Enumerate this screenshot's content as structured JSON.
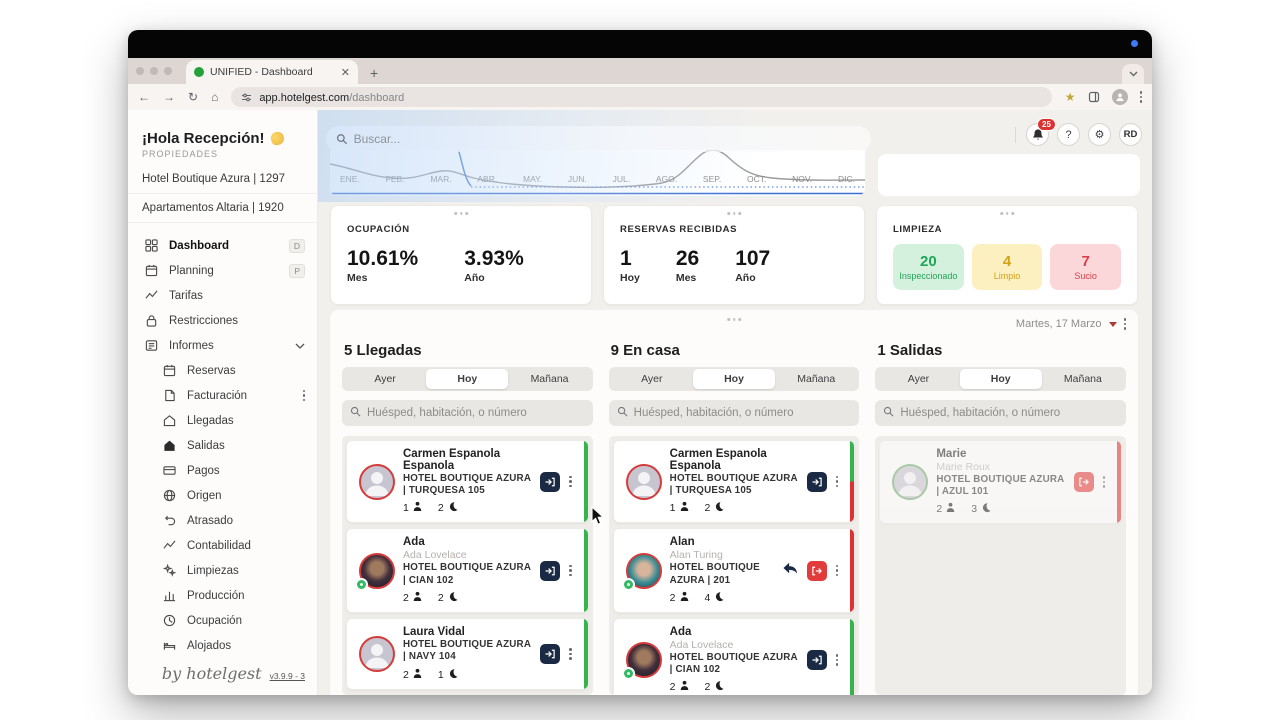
{
  "browser": {
    "tab_title": "UNIFIED - Dashboard",
    "close_glyph": "✕",
    "new_tab_glyph": "+",
    "back_glyph": "←",
    "forward_glyph": "→",
    "reload_glyph": "↻",
    "home_glyph": "⌂",
    "url_host": "app.hotelgest.com",
    "url_path": "/dashboard",
    "star_glyph": "★"
  },
  "sidebar": {
    "greeting": "¡Hola Recepción!",
    "section_label": "PROPIEDADES",
    "properties": [
      "Hotel Boutique Azura | 1297",
      "Apartamentos Altaria | 1920"
    ],
    "menu": [
      {
        "label": "Dashboard",
        "icon": "grid-icon",
        "badge": "D",
        "active": true
      },
      {
        "label": "Planning",
        "icon": "calendar-icon",
        "badge": "P"
      },
      {
        "label": "Tarifas",
        "icon": "chart-line-icon"
      },
      {
        "label": "Restricciones",
        "icon": "lock-icon"
      },
      {
        "label": "Informes",
        "icon": "news-icon",
        "chevron": true
      },
      {
        "label": "Reservas",
        "icon": "calendar-icon",
        "sub": true
      },
      {
        "label": "Facturación",
        "icon": "document-icon",
        "sub": true,
        "kebab": true
      },
      {
        "label": "Llegadas",
        "icon": "home-icon",
        "sub": true
      },
      {
        "label": "Salidas",
        "icon": "home-filled-icon",
        "sub": true
      },
      {
        "label": "Pagos",
        "icon": "credit-card-icon",
        "sub": true
      },
      {
        "label": "Origen",
        "icon": "globe-icon",
        "sub": true
      },
      {
        "label": "Atrasado",
        "icon": "undo-icon",
        "sub": true
      },
      {
        "label": "Contabilidad",
        "icon": "chart-line-icon",
        "sub": true
      },
      {
        "label": "Limpiezas",
        "icon": "sparkles-icon",
        "sub": true
      },
      {
        "label": "Producción",
        "icon": "bar-chart-icon",
        "sub": true
      },
      {
        "label": "Ocupación",
        "icon": "clock-icon",
        "sub": true
      },
      {
        "label": "Alojados",
        "icon": "bed-icon",
        "sub": true
      }
    ],
    "footer_brand": "by hotelgest",
    "version": "v3.9.9 - 3"
  },
  "topbar": {
    "search_placeholder": "Buscar...",
    "notification_count": "25",
    "help_label": "?",
    "gear_glyph": "⚙",
    "avatar_initials": "RD"
  },
  "chart": {
    "months": [
      "ENE.",
      "FEB.",
      "MAR.",
      "ABR.",
      "MAY.",
      "JUN.",
      "JUL.",
      "AGO.",
      "SEP.",
      "OCT.",
      "NOV.",
      "DIC."
    ]
  },
  "stats": {
    "ocupacion": {
      "title": "OCUPACIÓN",
      "values": [
        {
          "value": "10.61%",
          "label": "Mes"
        },
        {
          "value": "3.93%",
          "label": "Año"
        }
      ]
    },
    "reservas": {
      "title": "RESERVAS RECIBIDAS",
      "values": [
        {
          "value": "1",
          "label": "Hoy"
        },
        {
          "value": "26",
          "label": "Mes"
        },
        {
          "value": "107",
          "label": "Año"
        }
      ]
    },
    "limpieza": {
      "title": "LIMPIEZA",
      "tiles": [
        {
          "value": "20",
          "label": "Inspeccionado",
          "color": "green"
        },
        {
          "value": "4",
          "label": "Limpio",
          "color": "yellow"
        },
        {
          "value": "7",
          "label": "Sucio",
          "color": "red"
        }
      ]
    }
  },
  "board": {
    "date_label": "Martes, 17 Marzo",
    "tabs": [
      "Ayer",
      "Hoy",
      "Mañana"
    ],
    "active_tab": "Hoy",
    "search_placeholder": "Huésped, habitación, o número",
    "columns": [
      {
        "title": "5 Llegadas",
        "guests": [
          {
            "name": "Carmen Espanola Espanola",
            "subtitle": "",
            "hotel": "HOTEL BOUTIQUE AZURA | TURQUESA 105",
            "persons": "1",
            "nights": "2",
            "avatar": {
              "type": "placeholder",
              "ring": "red",
              "badge": false
            },
            "actions": [
              "checkin"
            ],
            "edge": "green",
            "faded": false
          },
          {
            "name": "Ada",
            "subtitle": "Ada Lovelace",
            "hotel": "HOTEL BOUTIQUE AZURA | CIAN 102",
            "persons": "2",
            "nights": "2",
            "avatar": {
              "type": "photo-ada",
              "ring": "red",
              "badge": true
            },
            "actions": [
              "checkin"
            ],
            "edge": "green",
            "faded": false
          },
          {
            "name": "Laura Vidal",
            "subtitle": "",
            "hotel": "HOTEL BOUTIQUE AZURA | NAVY 104",
            "persons": "2",
            "nights": "1",
            "avatar": {
              "type": "placeholder",
              "ring": "red",
              "badge": false
            },
            "actions": [
              "checkin"
            ],
            "edge": "green",
            "faded": false
          }
        ],
        "has_partial": true
      },
      {
        "title": "9 En casa",
        "guests": [
          {
            "name": "Carmen Espanola Espanola",
            "subtitle": "",
            "hotel": "HOTEL BOUTIQUE AZURA | TURQUESA 105",
            "persons": "1",
            "nights": "2",
            "avatar": {
              "type": "placeholder",
              "ring": "red",
              "badge": false
            },
            "actions": [
              "checkin"
            ],
            "edge": "green-red",
            "faded": false
          },
          {
            "name": "Alan",
            "subtitle": "Alan Turing",
            "hotel": "HOTEL BOUTIQUE AZURA | 201",
            "persons": "2",
            "nights": "4",
            "avatar": {
              "type": "photo-alan",
              "ring": "red",
              "badge": true
            },
            "actions": [
              "reply",
              "checkout"
            ],
            "edge": "red",
            "faded": false
          },
          {
            "name": "Ada",
            "subtitle": "Ada Lovelace",
            "hotel": "HOTEL BOUTIQUE AZURA | CIAN 102",
            "persons": "2",
            "nights": "2",
            "avatar": {
              "type": "photo-ada",
              "ring": "red",
              "badge": true
            },
            "actions": [
              "checkin"
            ],
            "edge": "green",
            "faded": false
          }
        ],
        "has_partial": true
      },
      {
        "title": "1 Salidas",
        "guests": [
          {
            "name": "Marie",
            "subtitle": "Marie Roux",
            "hotel": "HOTEL BOUTIQUE AZURA | AZUL 101",
            "persons": "2",
            "nights": "3",
            "avatar": {
              "type": "placeholder",
              "ring": "green",
              "badge": false
            },
            "actions": [
              "checkout"
            ],
            "edge": "red",
            "faded": true
          }
        ],
        "has_partial": false
      }
    ]
  }
}
